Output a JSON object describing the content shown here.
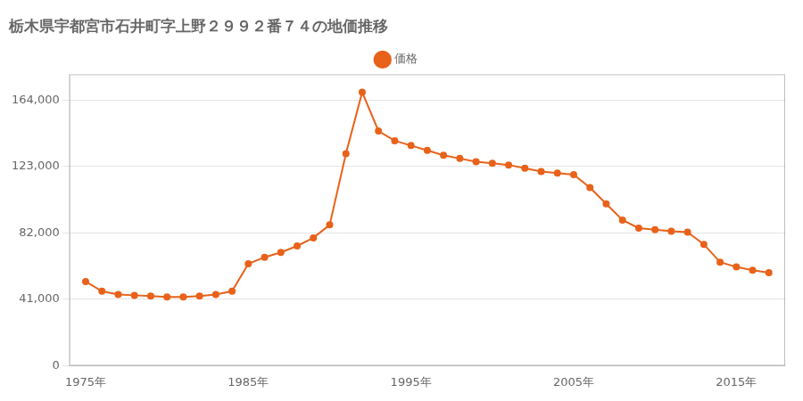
{
  "chart_data": {
    "type": "line",
    "title": "栃木県宇都宮市石井町字上野２９９２番７４の地価推移",
    "x": [
      1975,
      1976,
      1977,
      1978,
      1979,
      1980,
      1981,
      1982,
      1983,
      1984,
      1985,
      1986,
      1987,
      1988,
      1989,
      1990,
      1991,
      1992,
      1993,
      1994,
      1995,
      1996,
      1997,
      1998,
      1999,
      2000,
      2001,
      2002,
      2003,
      2004,
      2005,
      2006,
      2007,
      2008,
      2009,
      2010,
      2011,
      2012,
      2013,
      2014,
      2015,
      2016,
      2017
    ],
    "series": [
      {
        "name": "価格",
        "color": "#E8621A",
        "values": [
          52000,
          46000,
          44000,
          43500,
          43000,
          42500,
          42500,
          43000,
          44000,
          46000,
          63000,
          67000,
          70000,
          74000,
          79000,
          87000,
          131000,
          169000,
          145000,
          139000,
          136000,
          133000,
          130000,
          128000,
          126000,
          125000,
          124000,
          122000,
          120000,
          119000,
          118000,
          110000,
          100000,
          90000,
          85000,
          84000,
          83000,
          82500,
          75000,
          64000,
          61000,
          59000,
          57500
        ]
      }
    ],
    "xlim": [
      1974,
      2018
    ],
    "xticks": [
      {
        "value": 1975,
        "label": "1975年"
      },
      {
        "value": 1985,
        "label": "1985年"
      },
      {
        "value": 1995,
        "label": "1995年"
      },
      {
        "value": 2005,
        "label": "2005年"
      },
      {
        "value": 2015,
        "label": "2015年"
      }
    ],
    "ylim": [
      0,
      180000
    ],
    "yticks": [
      0,
      {
        "value": 41000,
        "label": "41,000"
      },
      {
        "value": 82000,
        "label": "82,000"
      },
      {
        "value": 123000,
        "label": "123,000"
      },
      {
        "value": 164000,
        "label": "164,000"
      }
    ],
    "grid": "y",
    "legend": "top",
    "marker": "circle"
  }
}
